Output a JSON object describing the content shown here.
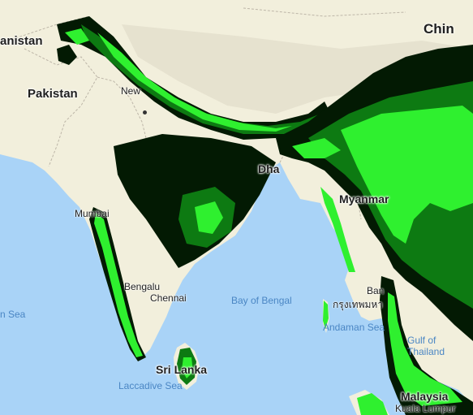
{
  "map": {
    "colors": {
      "water": "#a9d3f7",
      "land": "#f2efdc",
      "highland": "#e6e2cf",
      "border": "#bdb6a8",
      "overlay_dark": "#031a03",
      "overlay_mid": "#0d7a12",
      "overlay_bright": "#2ff02f"
    },
    "labels": {
      "afghanistan": "anistan",
      "pakistan": "Pakistan",
      "new_delhi": "New",
      "mumbai": "Mumbai",
      "bengaluru": "Bengalu",
      "chennai": "Chennai",
      "sri_lanka": "Sri Lanka",
      "dhaka": "Dha",
      "myanmar": "Myanmar",
      "bangkok": "Ban",
      "bangkok_thai": "กรุงเทพมหา",
      "china": "Chin",
      "kuala_lumpur": "Kuala Lumpur",
      "malaysia": "Malaysia",
      "arabian_sea": "n Sea",
      "bay_of_bengal": "Bay of Bengal",
      "andaman_sea": "Andaman Sea",
      "gulf_of_thailand": "Gulf of Thailand",
      "laccadive_sea": "Laccadive Sea"
    }
  }
}
